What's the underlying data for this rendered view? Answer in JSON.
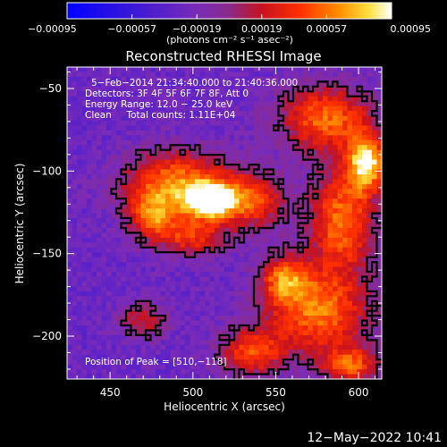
{
  "chart_data": {
    "type": "heatmap",
    "title": "Reconstructed RHESSI Image",
    "xlabel": "Heliocentric X (arcsec)",
    "ylabel": "Heliocentric Y (arcsec)",
    "xlim": [
      424,
      614
    ],
    "ylim": [
      -226,
      -37
    ],
    "x_ticks": [
      450,
      500,
      550,
      600
    ],
    "x_tick_labels": [
      "450",
      "500",
      "550",
      "600"
    ],
    "y_ticks": [
      -50,
      -100,
      -150,
      -200
    ],
    "y_tick_labels": [
      "−50",
      "−100",
      "−150",
      "−200"
    ],
    "colorbar": {
      "range": [
        -0.00095,
        0.00095
      ],
      "ticks": [
        -0.00095,
        -0.00057,
        -0.00019,
        0.00019,
        0.00057,
        0.00095
      ],
      "tick_labels": [
        "−0.00095",
        "−0.00057",
        "−0.00019",
        "0.00019",
        "0.00057",
        "0.00095"
      ],
      "unit_label": "(photons cm⁻² s⁻¹ asec⁻²)"
    },
    "annotations": [
      "5−Feb−2014 21:34:40.000 to 21:40:36.000",
      "Detectors: 3F 4F 5F 6F 7F 8F, Att 0",
      "Energy Range: 12.0 − 25.0 keV",
      "Clean     Total counts: 1.11E+04"
    ],
    "peak_label": "Position of Peak = [510,−118]",
    "peak_position": [
      510,
      -118
    ],
    "grid": false,
    "sources": [
      {
        "x": 510,
        "y": -118,
        "peak": 0.00095,
        "sx": 10,
        "sy": 7
      },
      {
        "x": 490,
        "y": -108,
        "peak": 0.00062,
        "sx": 22,
        "sy": 14
      },
      {
        "x": 535,
        "y": -118,
        "peak": 0.00045,
        "sx": 14,
        "sy": 12
      },
      {
        "x": 500,
        "y": -140,
        "peak": 0.00035,
        "sx": 14,
        "sy": 8
      },
      {
        "x": 475,
        "y": -128,
        "peak": 0.0004,
        "sx": 10,
        "sy": 10
      },
      {
        "x": 605,
        "y": -95,
        "peak": 0.00085,
        "sx": 8,
        "sy": 12
      },
      {
        "x": 580,
        "y": -68,
        "peak": 0.00055,
        "sx": 20,
        "sy": 14
      },
      {
        "x": 590,
        "y": -130,
        "peak": 0.00058,
        "sx": 14,
        "sy": 22
      },
      {
        "x": 575,
        "y": -185,
        "peak": 0.00058,
        "sx": 22,
        "sy": 18
      },
      {
        "x": 555,
        "y": -165,
        "peak": 0.00042,
        "sx": 10,
        "sy": 10
      },
      {
        "x": 535,
        "y": -210,
        "peak": 0.00042,
        "sx": 14,
        "sy": 10
      },
      {
        "x": 595,
        "y": -218,
        "peak": 0.00045,
        "sx": 12,
        "sy": 8
      },
      {
        "x": 470,
        "y": -190,
        "peak": 0.00022,
        "sx": 10,
        "sy": 8
      }
    ],
    "baseline": -0.00028
  },
  "timestamp": "12−May−2022 10:41"
}
